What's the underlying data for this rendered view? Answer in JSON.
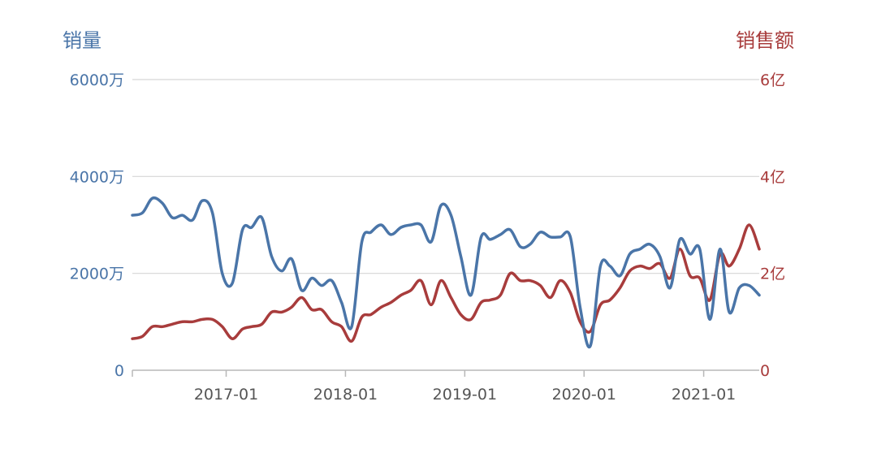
{
  "chart_data": {
    "type": "line",
    "dual_axis": true,
    "grid": true,
    "legend": "none",
    "colors": {
      "left": "#4a75a8",
      "right": "#a83c3c",
      "grid": "#d6d6d6",
      "axis": "#b8b8b8",
      "xtick_text": "#555555"
    },
    "y_left": {
      "title": "销量",
      "ticks": [
        "0",
        "2000万",
        "4000万",
        "6000万"
      ],
      "range": [
        0,
        6000
      ],
      "unit": "万"
    },
    "y_right": {
      "title": "销售额",
      "ticks": [
        "0",
        "2亿",
        "4亿",
        "6亿"
      ],
      "range": [
        0,
        6
      ],
      "unit": "亿"
    },
    "x_range": [
      "2016-03-20",
      "2021-06-20"
    ],
    "x_ticks": [
      {
        "label": "2017-01",
        "date": "2017-01-01"
      },
      {
        "label": "2018-01",
        "date": "2018-01-01"
      },
      {
        "label": "2019-01",
        "date": "2019-01-01"
      },
      {
        "label": "2020-01",
        "date": "2020-01-01"
      },
      {
        "label": "2021-01",
        "date": "2021-01-01"
      }
    ],
    "series": [
      {
        "axis": "left",
        "x": [
          "2016-03-20",
          "2016-04-20",
          "2016-05-20",
          "2016-06-20",
          "2016-07-20",
          "2016-08-20",
          "2016-09-20",
          "2016-10-20",
          "2016-11-20",
          "2016-12-20",
          "2017-01-20",
          "2017-02-20",
          "2017-03-20",
          "2017-04-20",
          "2017-05-20",
          "2017-06-20",
          "2017-07-20",
          "2017-08-20",
          "2017-09-20",
          "2017-10-20",
          "2017-11-20",
          "2017-12-20",
          "2018-01-20",
          "2018-02-20",
          "2018-03-20",
          "2018-04-20",
          "2018-05-20",
          "2018-06-20",
          "2018-07-20",
          "2018-08-20",
          "2018-09-20",
          "2018-10-20",
          "2018-11-20",
          "2018-12-20",
          "2019-01-20",
          "2019-02-20",
          "2019-03-20",
          "2019-04-20",
          "2019-05-20",
          "2019-06-20",
          "2019-07-20",
          "2019-08-20",
          "2019-09-20",
          "2019-10-20",
          "2019-11-20",
          "2019-12-20",
          "2020-01-20",
          "2020-02-20",
          "2020-03-20",
          "2020-04-20",
          "2020-05-20",
          "2020-06-20",
          "2020-07-20",
          "2020-08-20",
          "2020-09-20",
          "2020-10-20",
          "2020-11-20",
          "2020-12-20",
          "2021-01-20",
          "2021-02-20",
          "2021-03-20",
          "2021-04-20",
          "2021-05-20",
          "2021-06-20"
        ],
        "values": [
          3200,
          3250,
          3550,
          3450,
          3150,
          3200,
          3100,
          3500,
          3250,
          2000,
          1800,
          2900,
          2950,
          3150,
          2350,
          2050,
          2300,
          1650,
          1900,
          1750,
          1850,
          1400,
          900,
          2650,
          2850,
          3000,
          2800,
          2950,
          3000,
          3000,
          2650,
          3400,
          3200,
          2350,
          1550,
          2750,
          2700,
          2800,
          2900,
          2550,
          2600,
          2850,
          2750,
          2750,
          2750,
          1300,
          500,
          2150,
          2150,
          1950,
          2400,
          2500,
          2600,
          2350,
          1700,
          2700,
          2400,
          2500,
          1050,
          2500,
          1200,
          1700,
          1750,
          1550
        ]
      },
      {
        "axis": "right",
        "x": [
          "2016-03-20",
          "2016-04-20",
          "2016-05-20",
          "2016-06-20",
          "2016-07-20",
          "2016-08-20",
          "2016-09-20",
          "2016-10-20",
          "2016-11-20",
          "2016-12-20",
          "2017-01-20",
          "2017-02-20",
          "2017-03-20",
          "2017-04-20",
          "2017-05-20",
          "2017-06-20",
          "2017-07-20",
          "2017-08-20",
          "2017-09-20",
          "2017-10-20",
          "2017-11-20",
          "2017-12-20",
          "2018-01-20",
          "2018-02-20",
          "2018-03-20",
          "2018-04-20",
          "2018-05-20",
          "2018-06-20",
          "2018-07-20",
          "2018-08-20",
          "2018-09-20",
          "2018-10-20",
          "2018-11-20",
          "2018-12-20",
          "2019-01-20",
          "2019-02-20",
          "2019-03-20",
          "2019-04-20",
          "2019-05-20",
          "2019-06-20",
          "2019-07-20",
          "2019-08-20",
          "2019-09-20",
          "2019-10-20",
          "2019-11-20",
          "2019-12-20",
          "2020-01-20",
          "2020-02-20",
          "2020-03-20",
          "2020-04-20",
          "2020-05-20",
          "2020-06-20",
          "2020-07-20",
          "2020-08-20",
          "2020-09-20",
          "2020-10-20",
          "2020-11-20",
          "2020-12-20",
          "2021-01-20",
          "2021-02-20",
          "2021-03-20",
          "2021-04-20",
          "2021-05-20",
          "2021-06-20"
        ],
        "values": [
          0.65,
          0.7,
          0.9,
          0.9,
          0.95,
          1.0,
          1.0,
          1.05,
          1.05,
          0.9,
          0.65,
          0.85,
          0.9,
          0.95,
          1.2,
          1.2,
          1.3,
          1.5,
          1.25,
          1.25,
          1.0,
          0.9,
          0.6,
          1.1,
          1.15,
          1.3,
          1.4,
          1.55,
          1.65,
          1.85,
          1.35,
          1.85,
          1.5,
          1.15,
          1.05,
          1.4,
          1.45,
          1.55,
          2.0,
          1.85,
          1.85,
          1.75,
          1.5,
          1.85,
          1.6,
          1.0,
          0.8,
          1.35,
          1.45,
          1.7,
          2.05,
          2.15,
          2.1,
          2.2,
          1.9,
          2.5,
          1.95,
          1.9,
          1.45,
          2.4,
          2.15,
          2.5,
          3.0,
          2.5
        ]
      }
    ]
  }
}
